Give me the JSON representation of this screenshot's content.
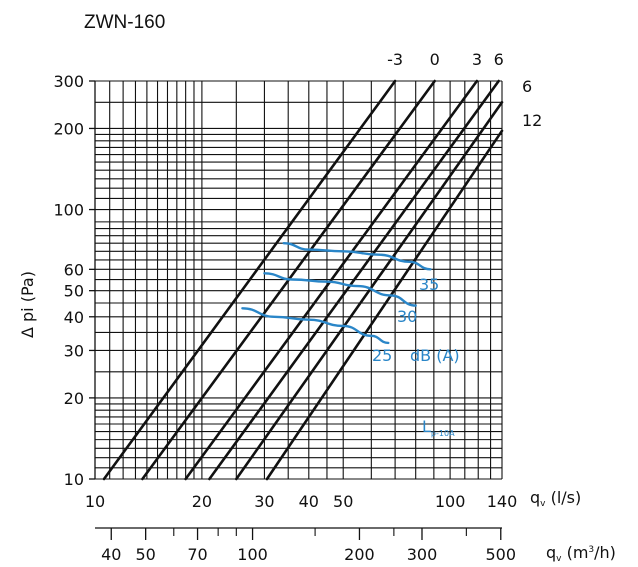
{
  "chart_data": {
    "type": "line",
    "title": "ZWN-160",
    "scale": "log-log",
    "ylabel": "Δ pi (Pa)",
    "xlabel": "qv (l/s)",
    "x2label": "qv (m³/h)",
    "ylim": [
      10,
      300
    ],
    "xlim": [
      10,
      140
    ],
    "x2lim": [
      36,
      504
    ],
    "grid": true,
    "y_ticks": [
      {
        "v": 300,
        "label": "300"
      },
      {
        "v": 200,
        "label": "200"
      },
      {
        "v": 100,
        "label": "100"
      },
      {
        "v": 60,
        "label": "60"
      },
      {
        "v": 50,
        "label": "50"
      },
      {
        "v": 40,
        "label": "40"
      },
      {
        "v": 30,
        "label": "30"
      },
      {
        "v": 20,
        "label": "20"
      },
      {
        "v": 10,
        "label": "10"
      }
    ],
    "y_grid": [
      10,
      11,
      12,
      13,
      14,
      15,
      16,
      17,
      18,
      19,
      20,
      25,
      30,
      35,
      40,
      45,
      50,
      55,
      60,
      65,
      70,
      75,
      80,
      85,
      90,
      100,
      110,
      120,
      130,
      140,
      150,
      160,
      170,
      180,
      190,
      200,
      250,
      300
    ],
    "x_ticks": [
      {
        "v": 10,
        "label": "10"
      },
      {
        "v": 20,
        "label": "20"
      },
      {
        "v": 30,
        "label": "30"
      },
      {
        "v": 40,
        "label": "40"
      },
      {
        "v": 50,
        "label": "50"
      },
      {
        "v": 100,
        "label": "100"
      },
      {
        "v": 140,
        "label": "140"
      }
    ],
    "x_grid": [
      11,
      12,
      13,
      14,
      15,
      16,
      17,
      18,
      19,
      20,
      25,
      30,
      35,
      40,
      45,
      50,
      60,
      70,
      80,
      90,
      100,
      110,
      120,
      130,
      140
    ],
    "x2_ticks": [
      {
        "v": 40,
        "label": "40"
      },
      {
        "v": 50,
        "label": "50"
      },
      {
        "v": 70,
        "label": "70"
      },
      {
        "v": 100,
        "label": "100"
      },
      {
        "v": 200,
        "label": "200"
      },
      {
        "v": 300,
        "label": "300"
      },
      {
        "v": 500,
        "label": "500"
      }
    ],
    "x2_minor": [
      60,
      80,
      90,
      150,
      250,
      400
    ],
    "series": [
      {
        "name": "-3",
        "x": [
          10.6,
          70
        ],
        "y": [
          10,
          300
        ]
      },
      {
        "name": "0",
        "x": [
          13.6,
          90.5
        ],
        "y": [
          10,
          300
        ]
      },
      {
        "name": "3",
        "x": [
          18,
          119
        ],
        "y": [
          10,
          300
        ]
      },
      {
        "name": "6",
        "x": [
          21,
          137
        ],
        "y": [
          10,
          300
        ]
      },
      {
        "name": "6",
        "x": [
          25,
          140
        ],
        "y": [
          10,
          250
        ]
      },
      {
        "name": "12",
        "x": [
          30.5,
          140
        ],
        "y": [
          10,
          196
        ]
      }
    ],
    "series_labels_top": [
      "-3",
      "0",
      "3",
      "6"
    ],
    "series_labels_right": [
      "6",
      "12"
    ],
    "noise_curves": [
      {
        "name": "35",
        "x": [
          34,
          40,
          50,
          63,
          77,
          88
        ],
        "y": [
          75,
          71,
          70,
          68,
          64,
          60
        ]
      },
      {
        "name": "30",
        "x": [
          30,
          36,
          45,
          55,
          68,
          80
        ],
        "y": [
          58,
          55,
          54,
          52,
          48,
          44
        ]
      },
      {
        "name": "25",
        "x": [
          26,
          32,
          40,
          50,
          60,
          67
        ],
        "y": [
          43,
          40,
          39,
          37,
          34,
          32
        ]
      }
    ],
    "annotations": {
      "unit": "dB (A)",
      "lp_main": "L",
      "lp_sub": "p-10A"
    },
    "colors": {
      "curve": "#111111",
      "noise": "#2a86c8",
      "grid": "#111111"
    }
  }
}
